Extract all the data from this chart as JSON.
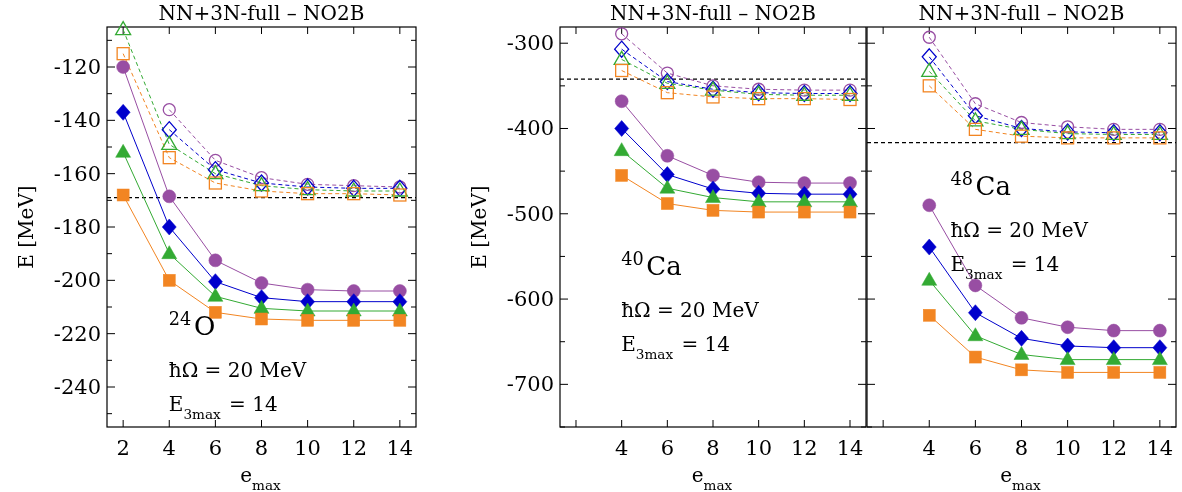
{
  "chart_data": [
    {
      "type": "line",
      "title": "NN+3N-full – NO2B",
      "xlabel": "e$_{max}$",
      "ylabel": "E [MeV]",
      "annotations": [
        "$^{24}$O",
        "ħΩ = 20 MeV",
        "E$_{3max}$ = 14"
      ],
      "x": [
        2,
        4,
        6,
        8,
        10,
        12,
        14
      ],
      "xlim": [
        1.3,
        14.7
      ],
      "xticks": [
        2,
        4,
        6,
        8,
        10,
        12,
        14
      ],
      "ylim": [
        -255,
        -105
      ],
      "yticks": [
        {
          "value": -110,
          "label": null
        },
        -120,
        {
          "value": -130,
          "label": null
        },
        -140,
        {
          "value": -150,
          "label": null
        },
        -160,
        {
          "value": -170,
          "label": null
        },
        -180,
        {
          "value": -190,
          "label": null
        },
        -200,
        {
          "value": -210,
          "label": null
        },
        -220,
        {
          "value": -230,
          "label": null
        },
        -240,
        {
          "value": -250,
          "label": null
        }
      ],
      "ref_lines": [
        {
          "axis": "y",
          "value": -169,
          "color": "#000000",
          "line_style": "dashed"
        }
      ],
      "series": [
        {
          "color": "#984ea3",
          "marker": "circle",
          "line_style": "solid",
          "values": [
            -120,
            -168.5,
            -192.5,
            -201,
            -203.5,
            -204,
            -204
          ]
        },
        {
          "color": "#0000cc",
          "marker": "diamond",
          "line_style": "solid",
          "values": [
            -137,
            -180,
            -200.5,
            -206.5,
            -208,
            -208,
            -208
          ]
        },
        {
          "color": "#33aa33",
          "marker": "triangle",
          "line_style": "solid",
          "values": [
            -152,
            -190,
            -206,
            -210.5,
            -211.5,
            -211.5,
            -211.5
          ]
        },
        {
          "color": "#f28522",
          "marker": "square",
          "line_style": "solid",
          "values": [
            -168,
            -200,
            -212,
            -214.5,
            -215,
            -215,
            -215
          ]
        },
        {
          "color": "#984ea3",
          "marker": "circle",
          "line_style": "dashed",
          "values": [
            null,
            -136,
            -155,
            -161.5,
            -164,
            -164.5,
            -165
          ]
        },
        {
          "color": "#0000cc",
          "marker": "diamond",
          "line_style": "dashed",
          "values": [
            null,
            -143.5,
            -158.5,
            -163.5,
            -165,
            -165.5,
            -165.5
          ]
        },
        {
          "color": "#33aa33",
          "marker": "triangle",
          "line_style": "dashed",
          "values": [
            -106,
            -149,
            -160,
            -164.5,
            -166,
            -166.5,
            -166.5
          ]
        },
        {
          "color": "#f28522",
          "marker": "square",
          "line_style": "dashed",
          "values": [
            -115,
            -154,
            -163.5,
            -166.5,
            -167.5,
            -167.5,
            -168
          ]
        }
      ]
    },
    {
      "type": "line",
      "title": "NN+3N-full – NO2B",
      "xlabel": "e$_{max}$",
      "ylabel": "E [MeV]",
      "annotations": [
        "$^{40}$Ca",
        "ħΩ = 20 MeV",
        "E$_{3max}$ = 14"
      ],
      "x": [
        4,
        6,
        8,
        10,
        12,
        14
      ],
      "xlim": [
        1.3,
        14.7
      ],
      "xticks": [
        {
          "value": 2,
          "label": null
        },
        4,
        6,
        8,
        10,
        12,
        14
      ],
      "ylim": [
        -750,
        -281
      ],
      "yticks": [
        -300,
        {
          "value": -350,
          "label": null
        },
        -400,
        {
          "value": -450,
          "label": null
        },
        -500,
        {
          "value": -550,
          "label": null
        },
        -600,
        {
          "value": -650,
          "label": null
        },
        -700,
        {
          "value": -750,
          "label": null
        }
      ],
      "ref_lines": [
        {
          "axis": "y",
          "value": -342,
          "color": "#000000",
          "line_style": "dashed"
        }
      ],
      "series": [
        {
          "color": "#984ea3",
          "marker": "circle",
          "line_style": "solid",
          "values": [
            -368,
            -432,
            -455,
            -463,
            -464,
            -464
          ]
        },
        {
          "color": "#0000cc",
          "marker": "diamond",
          "line_style": "solid",
          "values": [
            -400,
            -454,
            -471,
            -476,
            -477,
            -477
          ]
        },
        {
          "color": "#33aa33",
          "marker": "triangle",
          "line_style": "solid",
          "values": [
            -426,
            -470,
            -481,
            -486,
            -486,
            -486
          ]
        },
        {
          "color": "#f28522",
          "marker": "square",
          "line_style": "solid",
          "values": [
            -455,
            -488,
            -496,
            -498,
            -498,
            -498
          ]
        },
        {
          "color": "#984ea3",
          "marker": "circle",
          "line_style": "dashed",
          "values": [
            -289,
            -335,
            -350,
            -354,
            -355,
            -355
          ]
        },
        {
          "color": "#0000cc",
          "marker": "diamond",
          "line_style": "dashed",
          "values": [
            -307,
            -345,
            -354,
            -358,
            -359,
            -359
          ]
        },
        {
          "color": "#33aa33",
          "marker": "triangle",
          "line_style": "dashed",
          "values": [
            -319,
            -347,
            -355,
            -360,
            -361,
            -361
          ]
        },
        {
          "color": "#f28522",
          "marker": "square",
          "line_style": "dashed",
          "values": [
            -332,
            -358,
            -363,
            -365,
            -365,
            -366
          ]
        }
      ]
    },
    {
      "type": "line",
      "title": "NN+3N-full – NO2B",
      "xlabel": "e$_{max}$",
      "annotations": [
        "$^{48}$Ca",
        "ħΩ = 20 MeV",
        "E$_{3max}$ = 14"
      ],
      "x": [
        4,
        6,
        8,
        10,
        12,
        14
      ],
      "xlim": [
        1.3,
        14.7
      ],
      "xticks": [
        {
          "value": 2,
          "label": null
        },
        4,
        6,
        8,
        10,
        12,
        14
      ],
      "ylim": [
        -750,
        -281
      ],
      "yticks": [
        -300,
        {
          "value": -350,
          "label": null
        },
        -400,
        {
          "value": -450,
          "label": null
        },
        -500,
        {
          "value": -550,
          "label": null
        },
        -600,
        {
          "value": -650,
          "label": null
        },
        -700,
        {
          "value": -750,
          "label": null
        }
      ],
      "tick_labels": "x",
      "ref_lines": [
        {
          "axis": "y",
          "value": -416.5,
          "color": "#000000",
          "line_style": "dashed"
        }
      ],
      "series": [
        {
          "color": "#984ea3",
          "marker": "circle",
          "line_style": "solid",
          "values": [
            -490,
            -584,
            -622,
            -633,
            -637,
            -637
          ]
        },
        {
          "color": "#0000cc",
          "marker": "diamond",
          "line_style": "solid",
          "values": [
            -539,
            -616,
            -646,
            -655,
            -657,
            -657
          ]
        },
        {
          "color": "#33aa33",
          "marker": "triangle",
          "line_style": "solid",
          "values": [
            -578,
            -643,
            -665,
            -671,
            -671,
            -671
          ]
        },
        {
          "color": "#f28522",
          "marker": "square",
          "line_style": "solid",
          "values": [
            -619,
            -668,
            -683,
            -686,
            -686,
            -686
          ]
        },
        {
          "color": "#984ea3",
          "marker": "circle",
          "line_style": "dashed",
          "values": [
            -293,
            -371,
            -393,
            -398,
            -401,
            -401
          ]
        },
        {
          "color": "#0000cc",
          "marker": "diamond",
          "line_style": "dashed",
          "values": [
            -316,
            -385,
            -400,
            -404,
            -405,
            -405
          ]
        },
        {
          "color": "#33aa33",
          "marker": "triangle",
          "line_style": "dashed",
          "values": [
            -333,
            -391,
            -401,
            -406,
            -407,
            -407
          ]
        },
        {
          "color": "#f28522",
          "marker": "square",
          "line_style": "dashed",
          "values": [
            -350,
            -401,
            -409,
            -411,
            -411,
            -411
          ]
        }
      ]
    }
  ]
}
